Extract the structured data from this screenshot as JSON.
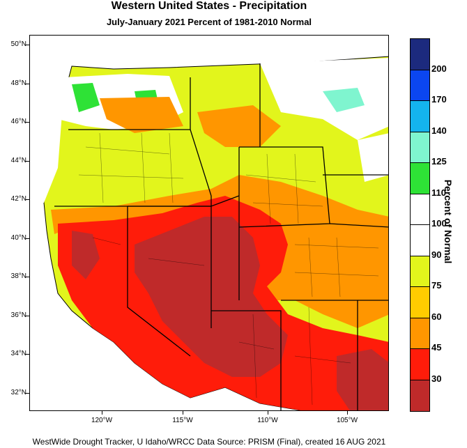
{
  "title": "Western United States - Precipitation",
  "subtitle": "July-January 2021  Percent of 1981-2010 Normal",
  "legend": {
    "title": "Percent of Normal",
    "classes": [
      {
        "color": "#1c2a7e",
        "label": "200"
      },
      {
        "color": "#0b46f0",
        "label": "170"
      },
      {
        "color": "#14b4ee",
        "label": "140"
      },
      {
        "color": "#7ff5cf",
        "label": "125"
      },
      {
        "color": "#2ee236",
        "label": "110"
      },
      {
        "color": "#ffffff",
        "label": "100"
      },
      {
        "color": "#ffffff",
        "label": "90"
      },
      {
        "color": "#e2f51c",
        "label": "75"
      },
      {
        "color": "#ffcc00",
        "label": "60"
      },
      {
        "color": "#ff9600",
        "label": "45"
      },
      {
        "color": "#ff1c0a",
        "label": "30"
      },
      {
        "color": "#bf2a2a",
        "label": ""
      }
    ]
  },
  "lat_labels": [
    "50°N",
    "48°N",
    "46°N",
    "44°N",
    "42°N",
    "40°N",
    "38°N",
    "36°N",
    "34°N",
    "32°N"
  ],
  "lon_labels": [
    "120°W",
    "115°W",
    "110°W",
    "105°W"
  ],
  "footer": "WestWide Drought Tracker, U Idaho/WRCC Data Source: PRISM (Final), created 16 AUG 2021"
}
